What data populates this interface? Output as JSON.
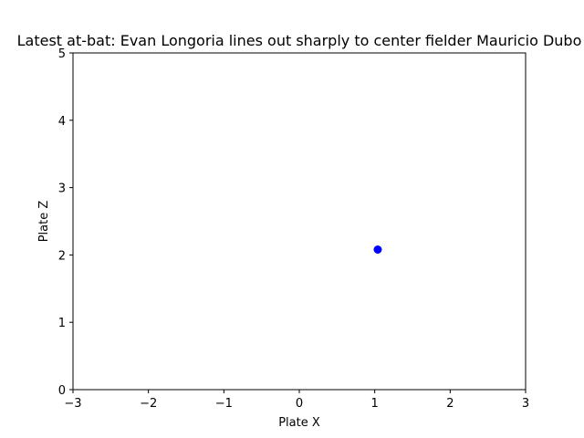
{
  "chart_data": {
    "type": "scatter",
    "title": "Latest at-bat: Evan Longoria lines out sharply to center fielder Mauricio Dubo",
    "xlabel": "Plate X",
    "ylabel": "Plate Z",
    "xlim": [
      -3,
      3
    ],
    "ylim": [
      0,
      5
    ],
    "xticks": [
      -3,
      -2,
      -1,
      0,
      1,
      2,
      3
    ],
    "xtick_labels": [
      "−3",
      "−2",
      "−1",
      "0",
      "1",
      "2",
      "3"
    ],
    "yticks": [
      0,
      1,
      2,
      3,
      4,
      5
    ],
    "ytick_labels": [
      "0",
      "1",
      "2",
      "3",
      "4",
      "5"
    ],
    "grid": false,
    "series": [
      {
        "color": "#0000ff",
        "points": [
          {
            "x": 1.04,
            "y": 2.08
          }
        ]
      }
    ]
  }
}
